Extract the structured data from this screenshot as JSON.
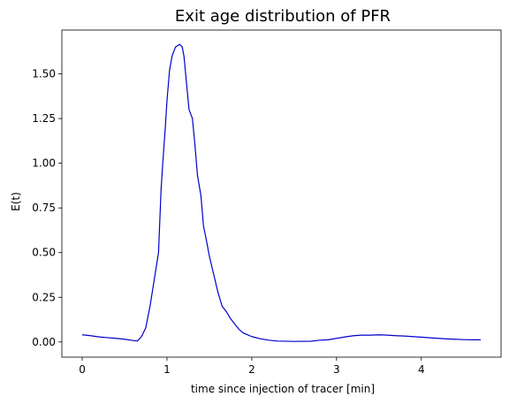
{
  "chart_data": {
    "type": "line",
    "title": "Exit age distribution of PFR",
    "xlabel": "time since injection of tracer [min]",
    "ylabel": "E(t)",
    "xlim": [
      -0.24,
      4.94
    ],
    "ylim": [
      -0.085,
      1.745
    ],
    "xticks": [
      0,
      1,
      2,
      3,
      4
    ],
    "xtick_labels": [
      "0",
      "1",
      "2",
      "3",
      "4"
    ],
    "yticks": [
      0.0,
      0.25,
      0.5,
      0.75,
      1.0,
      1.25,
      1.5
    ],
    "ytick_labels": [
      "0.00",
      "0.25",
      "0.50",
      "0.75",
      "1.00",
      "1.25",
      "1.50"
    ],
    "grid": false,
    "legend": "none",
    "series": [
      {
        "color": "#0000cc",
        "x": [
          0.0,
          0.1,
          0.2,
          0.3,
          0.4,
          0.5,
          0.6,
          0.65,
          0.7,
          0.75,
          0.8,
          0.85,
          0.9,
          0.93,
          0.95,
          0.98,
          1.0,
          1.03,
          1.06,
          1.1,
          1.15,
          1.18,
          1.2,
          1.23,
          1.26,
          1.3,
          1.33,
          1.36,
          1.4,
          1.43,
          1.46,
          1.5,
          1.55,
          1.6,
          1.65,
          1.7,
          1.75,
          1.8,
          1.85,
          1.9,
          1.95,
          2.0,
          2.1,
          2.2,
          2.3,
          2.5,
          2.7,
          2.8,
          2.9,
          3.0,
          3.1,
          3.2,
          3.3,
          3.4,
          3.5,
          3.6,
          3.7,
          3.8,
          3.9,
          4.0,
          4.1,
          4.2,
          4.3,
          4.4,
          4.5,
          4.6,
          4.7
        ],
        "y": [
          0.04,
          0.035,
          0.028,
          0.024,
          0.02,
          0.015,
          0.008,
          0.005,
          0.03,
          0.08,
          0.2,
          0.35,
          0.5,
          0.85,
          1.0,
          1.2,
          1.35,
          1.52,
          1.6,
          1.65,
          1.665,
          1.65,
          1.6,
          1.45,
          1.3,
          1.25,
          1.1,
          0.93,
          0.82,
          0.65,
          0.58,
          0.48,
          0.38,
          0.28,
          0.2,
          0.17,
          0.13,
          0.1,
          0.07,
          0.05,
          0.04,
          0.03,
          0.018,
          0.01,
          0.005,
          0.003,
          0.004,
          0.01,
          0.012,
          0.02,
          0.028,
          0.035,
          0.038,
          0.038,
          0.04,
          0.038,
          0.035,
          0.033,
          0.03,
          0.027,
          0.023,
          0.02,
          0.017,
          0.015,
          0.013,
          0.012,
          0.012
        ]
      }
    ]
  }
}
